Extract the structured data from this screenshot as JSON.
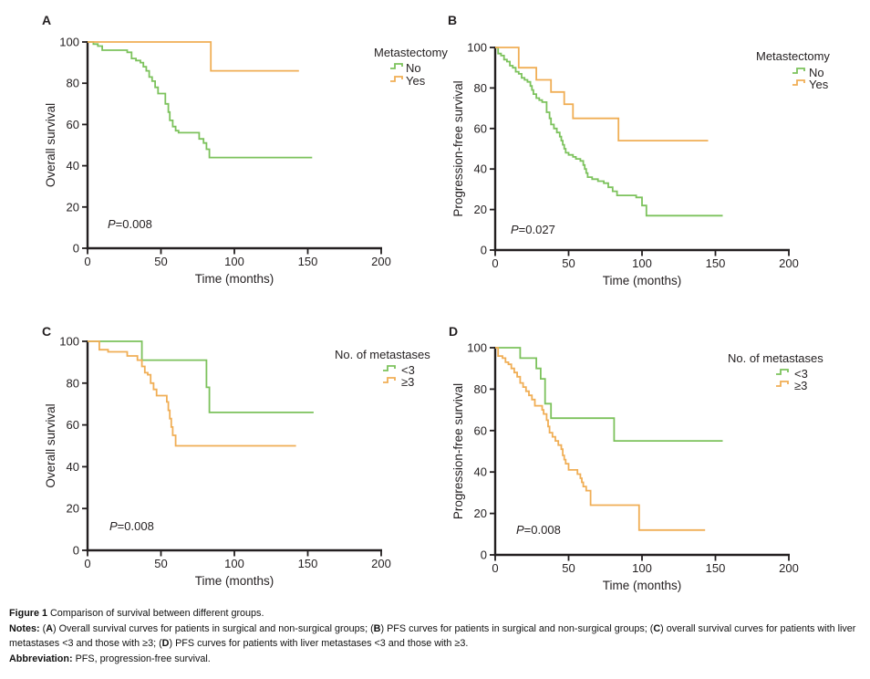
{
  "colors": {
    "ink": "#231f20",
    "green": "#7cc25c",
    "orange": "#f0ae55"
  },
  "chart_data": [
    {
      "panel": "A",
      "type": "line",
      "subtype": "kaplan_meier_step",
      "title": "",
      "xlabel": "Time (months)",
      "ylabel": "Overall survival",
      "xlim": [
        0,
        200
      ],
      "ylim": [
        0,
        100
      ],
      "xticks": [
        0,
        50,
        100,
        150,
        200
      ],
      "yticks": [
        0,
        20,
        40,
        60,
        80,
        100
      ],
      "grid": false,
      "legend_title": "Metastectomy",
      "legend_position": "upper right",
      "p_value": {
        "italic": "P",
        "rest": "=0.008"
      },
      "series": [
        {
          "name": "No",
          "color": "#7cc25c",
          "points": [
            [
              0,
              100
            ],
            [
              4,
              99
            ],
            [
              7,
              98
            ],
            [
              10,
              96
            ],
            [
              27,
              95
            ],
            [
              30,
              92
            ],
            [
              33,
              91
            ],
            [
              36,
              90
            ],
            [
              38,
              88
            ],
            [
              40,
              86
            ],
            [
              42,
              83
            ],
            [
              44,
              81
            ],
            [
              46,
              78
            ],
            [
              48,
              75
            ],
            [
              53,
              70
            ],
            [
              55,
              66
            ],
            [
              56,
              62
            ],
            [
              58,
              59
            ],
            [
              60,
              57
            ],
            [
              62,
              56
            ],
            [
              76,
              53
            ],
            [
              79,
              51
            ],
            [
              81,
              48
            ],
            [
              83,
              44
            ],
            [
              153,
              44
            ]
          ]
        },
        {
          "name": "Yes",
          "color": "#f0ae55",
          "points": [
            [
              0,
              100
            ],
            [
              84,
              86
            ],
            [
              144,
              86
            ]
          ]
        }
      ]
    },
    {
      "panel": "B",
      "type": "line",
      "subtype": "kaplan_meier_step",
      "title": "",
      "xlabel": "Time (months)",
      "ylabel": "Progression-free survival",
      "xlim": [
        0,
        200
      ],
      "ylim": [
        0,
        100
      ],
      "xticks": [
        0,
        50,
        100,
        150,
        200
      ],
      "yticks": [
        0,
        20,
        40,
        60,
        80,
        100
      ],
      "grid": false,
      "legend_title": "Metastectomy",
      "legend_position": "upper right",
      "p_value": {
        "italic": "P",
        "rest": "=0.027"
      },
      "series": [
        {
          "name": "No",
          "color": "#7cc25c",
          "points": [
            [
              0,
              100
            ],
            [
              2,
              97
            ],
            [
              4,
              96
            ],
            [
              6,
              94
            ],
            [
              8,
              93
            ],
            [
              10,
              91
            ],
            [
              12,
              90
            ],
            [
              14,
              88
            ],
            [
              16,
              87
            ],
            [
              18,
              85
            ],
            [
              20,
              84
            ],
            [
              22,
              83
            ],
            [
              24,
              81
            ],
            [
              25,
              79
            ],
            [
              26,
              77
            ],
            [
              28,
              75
            ],
            [
              30,
              74
            ],
            [
              32,
              73
            ],
            [
              35,
              68
            ],
            [
              37,
              65
            ],
            [
              38,
              62
            ],
            [
              40,
              60
            ],
            [
              42,
              58
            ],
            [
              44,
              56
            ],
            [
              45,
              54
            ],
            [
              46,
              52
            ],
            [
              47,
              50
            ],
            [
              48,
              48
            ],
            [
              50,
              47
            ],
            [
              53,
              46
            ],
            [
              55,
              45
            ],
            [
              58,
              44
            ],
            [
              60,
              42
            ],
            [
              61,
              40
            ],
            [
              62,
              38
            ],
            [
              63,
              36
            ],
            [
              66,
              35
            ],
            [
              70,
              34
            ],
            [
              74,
              33
            ],
            [
              77,
              31
            ],
            [
              80,
              29
            ],
            [
              83,
              27
            ],
            [
              96,
              26
            ],
            [
              100,
              22
            ],
            [
              103,
              17
            ],
            [
              155,
              17
            ]
          ]
        },
        {
          "name": "Yes",
          "color": "#f0ae55",
          "points": [
            [
              0,
              100
            ],
            [
              16,
              90
            ],
            [
              28,
              84
            ],
            [
              38,
              78
            ],
            [
              47,
              72
            ],
            [
              53,
              65
            ],
            [
              84,
              54
            ],
            [
              145,
              54
            ]
          ]
        }
      ]
    },
    {
      "panel": "C",
      "type": "line",
      "subtype": "kaplan_meier_step",
      "title": "",
      "xlabel": "Time (months)",
      "ylabel": "Overall survival",
      "xlim": [
        0,
        200
      ],
      "ylim": [
        0,
        100
      ],
      "xticks": [
        0,
        50,
        100,
        150,
        200
      ],
      "yticks": [
        0,
        20,
        40,
        60,
        80,
        100
      ],
      "grid": false,
      "legend_title": "No. of metastases",
      "legend_position": "upper right",
      "p_value": {
        "italic": "P",
        "rest": "=0.008"
      },
      "series": [
        {
          "name": "<3",
          "color": "#7cc25c",
          "points": [
            [
              0,
              100
            ],
            [
              37,
              91
            ],
            [
              81,
              78
            ],
            [
              83,
              66
            ],
            [
              154,
              66
            ]
          ]
        },
        {
          "name": "≥3",
          "color": "#f0ae55",
          "points": [
            [
              0,
              100
            ],
            [
              8,
              96
            ],
            [
              14,
              95
            ],
            [
              27,
              93
            ],
            [
              34,
              91
            ],
            [
              37,
              88
            ],
            [
              39,
              85
            ],
            [
              41,
              84
            ],
            [
              43,
              80
            ],
            [
              45,
              77
            ],
            [
              47,
              74
            ],
            [
              54,
              71
            ],
            [
              55,
              67
            ],
            [
              56,
              63
            ],
            [
              57,
              59
            ],
            [
              58,
              55
            ],
            [
              60,
              50
            ],
            [
              142,
              50
            ]
          ]
        }
      ]
    },
    {
      "panel": "D",
      "type": "line",
      "subtype": "kaplan_meier_step",
      "title": "",
      "xlabel": "Time (months)",
      "ylabel": "Progression-free survival",
      "xlim": [
        0,
        200
      ],
      "ylim": [
        0,
        100
      ],
      "xticks": [
        0,
        50,
        100,
        150,
        200
      ],
      "yticks": [
        0,
        20,
        40,
        60,
        80,
        100
      ],
      "grid": false,
      "legend_title": "No. of metastases",
      "legend_position": "upper right",
      "p_value": {
        "italic": "P",
        "rest": "=0.008"
      },
      "series": [
        {
          "name": "<3",
          "color": "#7cc25c",
          "points": [
            [
              0,
              100
            ],
            [
              17,
              95
            ],
            [
              28,
              90
            ],
            [
              31,
              85
            ],
            [
              34,
              73
            ],
            [
              38,
              66
            ],
            [
              81,
              55
            ],
            [
              155,
              55
            ]
          ]
        },
        {
          "name": "≥3",
          "color": "#f0ae55",
          "points": [
            [
              0,
              100
            ],
            [
              2,
              96
            ],
            [
              5,
              95
            ],
            [
              7,
              93
            ],
            [
              9,
              92
            ],
            [
              11,
              90
            ],
            [
              13,
              88
            ],
            [
              15,
              86
            ],
            [
              17,
              83
            ],
            [
              19,
              81
            ],
            [
              21,
              79
            ],
            [
              23,
              77
            ],
            [
              25,
              75
            ],
            [
              27,
              72
            ],
            [
              32,
              70
            ],
            [
              33,
              68
            ],
            [
              35,
              65
            ],
            [
              36,
              62
            ],
            [
              37,
              59
            ],
            [
              39,
              57
            ],
            [
              41,
              55
            ],
            [
              43,
              53
            ],
            [
              45,
              51
            ],
            [
              46,
              48
            ],
            [
              47,
              46
            ],
            [
              48,
              44
            ],
            [
              50,
              41
            ],
            [
              56,
              39
            ],
            [
              58,
              37
            ],
            [
              59,
              35
            ],
            [
              60,
              33
            ],
            [
              62,
              31
            ],
            [
              65,
              24
            ],
            [
              97,
              24
            ],
            [
              98,
              12
            ],
            [
              143,
              12
            ]
          ]
        }
      ]
    }
  ],
  "caption": {
    "lines": [
      {
        "name": "figure-title",
        "segments": [
          {
            "text": "Figure 1 ",
            "bold": true
          },
          {
            "text": "Comparison of survival between different groups.",
            "bold": false
          }
        ]
      },
      {
        "name": "notes",
        "segments": [
          {
            "text": "Notes: ",
            "bold": true
          },
          {
            "text": "(",
            "bold": false
          },
          {
            "text": "A",
            "bold": true
          },
          {
            "text": ") Overall survival curves for patients in surgical and non-surgical groups; (",
            "bold": false
          },
          {
            "text": "B",
            "bold": true
          },
          {
            "text": ") PFS curves for patients in surgical and non-surgical groups; (",
            "bold": false
          },
          {
            "text": "C",
            "bold": true
          },
          {
            "text": ") overall survival curves for patients with liver metastases <3 and those with ≥3; (",
            "bold": false
          },
          {
            "text": "D",
            "bold": true
          },
          {
            "text": ") PFS curves for patients with liver metastases <3 and those with ≥3.",
            "bold": false
          }
        ]
      },
      {
        "name": "abbreviation",
        "segments": [
          {
            "text": "Abbreviation: ",
            "bold": true
          },
          {
            "text": "PFS, progression-free survival.",
            "bold": false
          }
        ]
      }
    ]
  }
}
